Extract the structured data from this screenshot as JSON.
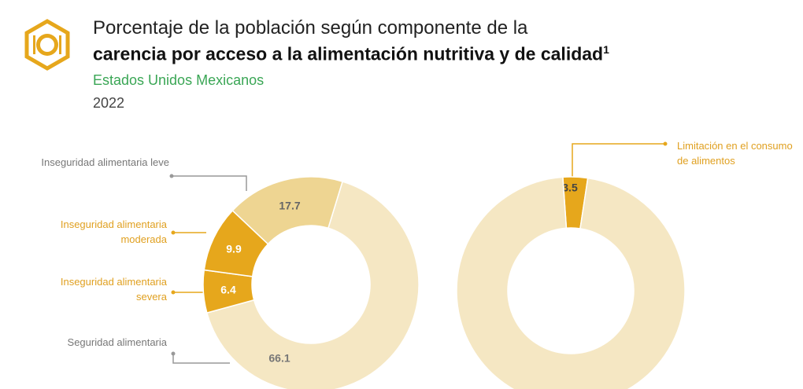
{
  "header": {
    "title_line1": "Porcentaje de la población según componente de la",
    "title_line2": "carencia por acceso a la alimentación nutritiva y de calidad",
    "title_note": "1",
    "subtitle": "Estados Unidos Mexicanos",
    "year": "2022"
  },
  "chart_data": [
    {
      "type": "donut",
      "categories": [
        "Seguridad alimentaria",
        "Inseguridad alimentaria severa",
        "Inseguridad alimentaria moderada",
        "Inseguridad alimentaria leve"
      ],
      "values": [
        66.1,
        6.4,
        9.9,
        17.7
      ],
      "colors": [
        "#f5e7c3",
        "#e6a71c",
        "#e6a71c",
        "#eed592"
      ]
    },
    {
      "type": "donut",
      "categories": [
        "Limitación en el consumo de alimentos",
        null
      ],
      "values": [
        3.5,
        96.5
      ],
      "colors": [
        "#e6a71c",
        "#f5e7c3"
      ]
    }
  ]
}
